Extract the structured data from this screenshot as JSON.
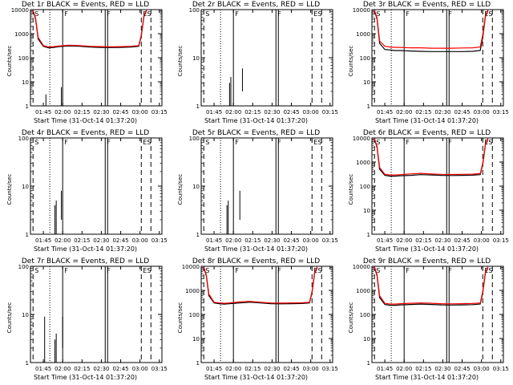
{
  "figure": {
    "xlabel": "Start Time (31-Oct-14 01:37:20)",
    "ylabel": "Counts/sec",
    "series_legend": "BLACK = Events, RED = LLD",
    "colors": {
      "events": "#000000",
      "lld": "#ff0000",
      "background": "#ffffff"
    }
  },
  "chart_data": [
    {
      "type": "line",
      "title": "Det 1r BLACK = Events, RED = LLD",
      "xlabel": "Start Time (31-Oct-14 01:37:20)",
      "ylabel": "Counts/sec",
      "xticks": [
        "01:45",
        "02:00",
        "02:15",
        "02:30",
        "02:45",
        "03:00",
        "03:15"
      ],
      "yscale": "log",
      "ylim": [
        1,
        10000
      ],
      "yticks": [
        "1",
        "10",
        "100",
        "1000",
        "10000"
      ],
      "xlim_minutes_from_start": [
        -2,
        100
      ],
      "markers": [
        {
          "label": "S",
          "x": 0
        },
        {
          "label": "F",
          "x": 23
        },
        {
          "label": "F",
          "x": 56
        },
        {
          "label": "ES",
          "x": 84
        }
      ],
      "series": [
        {
          "name": "Events",
          "color": "#000000",
          "x": [
            0,
            2,
            4,
            8,
            12,
            16,
            20,
            28,
            36,
            44,
            52,
            60,
            68,
            76,
            82,
            84,
            86,
            88
          ],
          "values": [
            9000,
            4000,
            600,
            300,
            260,
            270,
            290,
            310,
            300,
            280,
            270,
            265,
            270,
            280,
            300,
            800,
            5000,
            9000
          ]
        },
        {
          "name": "LLD",
          "color": "#ff0000",
          "x": [
            0,
            2,
            4,
            8,
            12,
            16,
            20,
            28,
            36,
            44,
            52,
            60,
            68,
            76,
            82,
            84,
            86,
            88
          ],
          "values": [
            9500,
            4500,
            700,
            320,
            280,
            290,
            310,
            330,
            320,
            300,
            290,
            285,
            290,
            300,
            320,
            900,
            5500,
            9500
          ]
        }
      ],
      "spikes": [
        {
          "x": 10,
          "ymin": 1,
          "ymax": 3
        },
        {
          "x": 22,
          "ymin": 1,
          "ymax": 6
        }
      ]
    },
    {
      "type": "line",
      "title": "Det 2r BLACK = Events, RED = LLD",
      "xlabel": "Start Time (31-Oct-14 01:37:20)",
      "ylabel": "Counts/sec",
      "xticks": [
        "01:45",
        "02:00",
        "02:15",
        "02:30",
        "02:45",
        "03:00",
        "03:15"
      ],
      "yscale": "log",
      "ylim": [
        1,
        100
      ],
      "yticks": [
        "1",
        "10",
        "100"
      ],
      "xlim_minutes_from_start": [
        -2,
        100
      ],
      "markers": [
        {
          "label": "S",
          "x": 0
        },
        {
          "label": "F",
          "x": 23
        },
        {
          "label": "F",
          "x": 56
        },
        {
          "label": "ES",
          "x": 84
        }
      ],
      "series": [],
      "spikes": [
        {
          "x": 20,
          "ymin": 1,
          "ymax": 3
        },
        {
          "x": 21,
          "ymin": 1,
          "ymax": 4
        },
        {
          "x": 30,
          "ymin": 2,
          "ymax": 6
        }
      ]
    },
    {
      "type": "line",
      "title": "Det 3r BLACK = Events, RED = LLD",
      "xlabel": "Start Time (31-Oct-14 01:37:20)",
      "ylabel": "Counts/sec",
      "xticks": [
        "01:45",
        "02:00",
        "02:15",
        "02:30",
        "02:45",
        "03:00",
        "03:15"
      ],
      "yscale": "log",
      "ylim": [
        1,
        10000
      ],
      "yticks": [
        "1",
        "10",
        "100",
        "1000",
        "10000"
      ],
      "xlim_minutes_from_start": [
        -2,
        100
      ],
      "markers": [
        {
          "label": "S",
          "x": 0
        },
        {
          "label": "F",
          "x": 23
        },
        {
          "label": "F",
          "x": 56
        },
        {
          "label": "ES",
          "x": 84
        }
      ],
      "series": [
        {
          "name": "Events",
          "color": "#000000",
          "x": [
            0,
            2,
            4,
            8,
            12,
            16,
            20,
            28,
            36,
            44,
            52,
            60,
            68,
            76,
            82,
            84,
            86,
            88
          ],
          "values": [
            9000,
            4000,
            400,
            220,
            210,
            200,
            200,
            190,
            185,
            180,
            180,
            180,
            180,
            185,
            200,
            700,
            5000,
            9000
          ]
        },
        {
          "name": "LLD",
          "color": "#ff0000",
          "x": [
            0,
            2,
            4,
            8,
            12,
            16,
            20,
            28,
            36,
            44,
            52,
            60,
            68,
            76,
            82,
            84,
            86,
            88
          ],
          "values": [
            9500,
            4500,
            500,
            300,
            280,
            270,
            270,
            260,
            260,
            250,
            250,
            250,
            255,
            260,
            280,
            900,
            5500,
            9500
          ]
        }
      ],
      "spikes": []
    },
    {
      "type": "line",
      "title": "Det 4r BLACK = Events, RED = LLD",
      "xlabel": "Start Time (31-Oct-14 01:37:20)",
      "ylabel": "Counts/sec",
      "xticks": [
        "01:45",
        "02:00",
        "02:15",
        "02:30",
        "02:45",
        "03:00",
        "03:15"
      ],
      "yscale": "log",
      "ylim": [
        1,
        100
      ],
      "yticks": [
        "1",
        "10",
        "100"
      ],
      "xlim_minutes_from_start": [
        -2,
        100
      ],
      "markers": [
        {
          "label": "S",
          "x": 0
        },
        {
          "label": "F",
          "x": 23
        },
        {
          "label": "F",
          "x": 56
        },
        {
          "label": "ES",
          "x": 84
        }
      ],
      "series": [],
      "spikes": [
        {
          "x": 17,
          "ymin": 1,
          "ymax": 4
        },
        {
          "x": 18,
          "ymin": 1,
          "ymax": 5
        },
        {
          "x": 22,
          "ymin": 2,
          "ymax": 8
        }
      ]
    },
    {
      "type": "line",
      "title": "Det 5r BLACK = Events, RED = LLD",
      "xlabel": "Start Time (31-Oct-14 01:37:20)",
      "ylabel": "Counts/sec",
      "xticks": [
        "01:45",
        "02:00",
        "02:15",
        "02:30",
        "02:45",
        "03:00",
        "03:15"
      ],
      "yscale": "log",
      "ylim": [
        1,
        100
      ],
      "yticks": [
        "1",
        "10",
        "100"
      ],
      "xlim_minutes_from_start": [
        -2,
        100
      ],
      "markers": [
        {
          "label": "S",
          "x": 0
        },
        {
          "label": "F",
          "x": 23
        },
        {
          "label": "F",
          "x": 56
        },
        {
          "label": "ES",
          "x": 84
        }
      ],
      "series": [],
      "spikes": [
        {
          "x": 18,
          "ymin": 1,
          "ymax": 4
        },
        {
          "x": 19,
          "ymin": 1,
          "ymax": 5
        },
        {
          "x": 28,
          "ymin": 2,
          "ymax": 8
        }
      ]
    },
    {
      "type": "line",
      "title": "Det 6r BLACK = Events, RED = LLD",
      "xlabel": "Start Time (31-Oct-14 01:37:20)",
      "ylabel": "Counts/sec",
      "xticks": [
        "01:45",
        "02:00",
        "02:15",
        "02:30",
        "02:45",
        "03:00",
        "03:15"
      ],
      "yscale": "log",
      "ylim": [
        1,
        10000
      ],
      "yticks": [
        "1",
        "10",
        "100",
        "1000",
        "10000"
      ],
      "xlim_minutes_from_start": [
        -2,
        100
      ],
      "markers": [
        {
          "label": "S",
          "x": 0
        },
        {
          "label": "F",
          "x": 23
        },
        {
          "label": "F",
          "x": 56
        },
        {
          "label": "ES",
          "x": 84
        }
      ],
      "series": [
        {
          "name": "Events",
          "color": "#000000",
          "x": [
            0,
            2,
            4,
            8,
            12,
            16,
            20,
            28,
            36,
            44,
            52,
            60,
            68,
            76,
            82,
            84,
            86,
            88
          ],
          "values": [
            9000,
            4000,
            500,
            280,
            260,
            260,
            270,
            280,
            300,
            290,
            280,
            275,
            280,
            285,
            300,
            800,
            5000,
            9000
          ]
        },
        {
          "name": "LLD",
          "color": "#ff0000",
          "x": [
            0,
            2,
            4,
            8,
            12,
            16,
            20,
            28,
            36,
            44,
            52,
            60,
            68,
            76,
            82,
            84,
            86,
            88
          ],
          "values": [
            9500,
            4500,
            600,
            310,
            290,
            290,
            300,
            320,
            340,
            320,
            310,
            305,
            310,
            315,
            330,
            900,
            5500,
            9500
          ]
        }
      ],
      "spikes": []
    },
    {
      "type": "line",
      "title": "Det 7r BLACK = Events, RED = LLD",
      "xlabel": "Start Time (31-Oct-14 01:37:20)",
      "ylabel": "Counts/sec",
      "xticks": [
        "01:45",
        "02:00",
        "02:15",
        "02:30",
        "02:45",
        "03:00",
        "03:15"
      ],
      "yscale": "log",
      "ylim": [
        1,
        100
      ],
      "yticks": [
        "1",
        "10",
        "100"
      ],
      "xlim_minutes_from_start": [
        -2,
        100
      ],
      "markers": [
        {
          "label": "S",
          "x": 0
        },
        {
          "label": "F",
          "x": 23
        },
        {
          "label": "F",
          "x": 56
        },
        {
          "label": "ES",
          "x": 84
        }
      ],
      "series": [],
      "spikes": [
        {
          "x": 9,
          "ymin": 1,
          "ymax": 9
        },
        {
          "x": 17,
          "ymin": 1,
          "ymax": 3
        },
        {
          "x": 18,
          "ymin": 1,
          "ymax": 4
        },
        {
          "x": 23,
          "ymin": 2,
          "ymax": 9
        }
      ]
    },
    {
      "type": "line",
      "title": "Det 8r BLACK = Events, RED = LLD",
      "xlabel": "Start Time (31-Oct-14 01:37:20)",
      "ylabel": "Counts/sec",
      "xticks": [
        "01:45",
        "02:00",
        "02:15",
        "02:30",
        "02:45",
        "03:00",
        "03:15"
      ],
      "yscale": "log",
      "ylim": [
        1,
        10000
      ],
      "yticks": [
        "1",
        "10",
        "100",
        "1000",
        "10000"
      ],
      "xlim_minutes_from_start": [
        -2,
        100
      ],
      "markers": [
        {
          "label": "S",
          "x": 0
        },
        {
          "label": "F",
          "x": 23
        },
        {
          "label": "F",
          "x": 56
        },
        {
          "label": "ES",
          "x": 84
        }
      ],
      "series": [
        {
          "name": "Events",
          "color": "#000000",
          "x": [
            0,
            2,
            4,
            8,
            12,
            16,
            20,
            28,
            36,
            44,
            52,
            60,
            68,
            76,
            82,
            84,
            86,
            88
          ],
          "values": [
            9000,
            4000,
            600,
            300,
            280,
            270,
            280,
            300,
            320,
            300,
            280,
            275,
            280,
            285,
            300,
            800,
            5000,
            9000
          ]
        },
        {
          "name": "LLD",
          "color": "#ff0000",
          "x": [
            0,
            2,
            4,
            8,
            12,
            16,
            20,
            28,
            36,
            44,
            52,
            60,
            68,
            76,
            82,
            84,
            86,
            88
          ],
          "values": [
            9500,
            4500,
            700,
            320,
            300,
            290,
            300,
            330,
            350,
            320,
            300,
            295,
            300,
            305,
            320,
            900,
            5500,
            9500
          ]
        }
      ],
      "spikes": []
    },
    {
      "type": "line",
      "title": "Det 9r BLACK = Events, RED = LLD",
      "xlabel": "Start Time (31-Oct-14 01:37:20)",
      "ylabel": "Counts/sec",
      "xticks": [
        "01:45",
        "02:00",
        "02:15",
        "02:30",
        "02:45",
        "03:00",
        "03:15"
      ],
      "yscale": "log",
      "ylim": [
        1,
        10000
      ],
      "yticks": [
        "1",
        "10",
        "100",
        "1000",
        "10000"
      ],
      "xlim_minutes_from_start": [
        -2,
        100
      ],
      "markers": [
        {
          "label": "S",
          "x": 0
        },
        {
          "label": "F",
          "x": 23
        },
        {
          "label": "F",
          "x": 56
        },
        {
          "label": "ES",
          "x": 84
        }
      ],
      "series": [
        {
          "name": "Events",
          "color": "#000000",
          "x": [
            0,
            2,
            4,
            8,
            12,
            16,
            20,
            28,
            36,
            44,
            52,
            60,
            68,
            76,
            82,
            84,
            86,
            88
          ],
          "values": [
            9000,
            4000,
            500,
            260,
            240,
            240,
            250,
            260,
            270,
            260,
            250,
            245,
            250,
            255,
            270,
            800,
            5000,
            9000
          ]
        },
        {
          "name": "LLD",
          "color": "#ff0000",
          "x": [
            0,
            2,
            4,
            8,
            12,
            16,
            20,
            28,
            36,
            44,
            52,
            60,
            68,
            76,
            82,
            84,
            86,
            88
          ],
          "values": [
            9500,
            4500,
            600,
            290,
            270,
            270,
            280,
            290,
            300,
            290,
            280,
            275,
            280,
            285,
            300,
            900,
            5500,
            9500
          ]
        }
      ],
      "spikes": []
    }
  ]
}
